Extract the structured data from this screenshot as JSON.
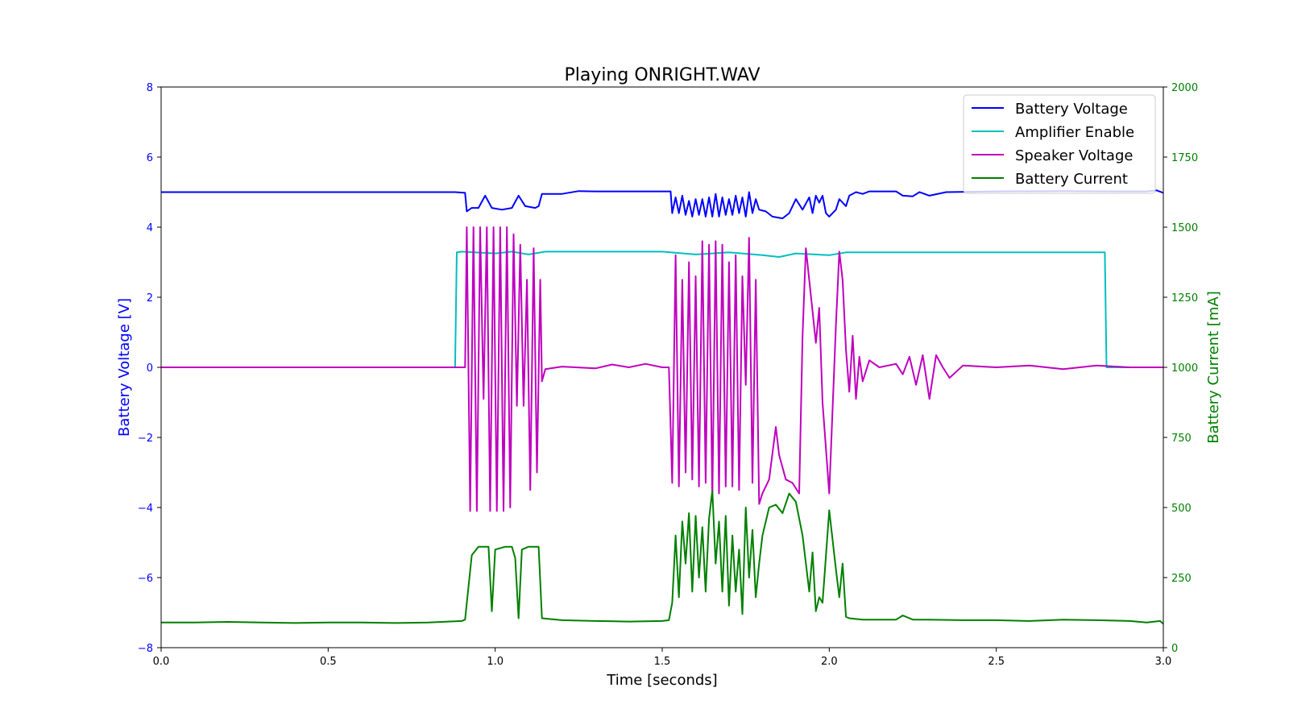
{
  "chart_data": {
    "type": "line",
    "title": "Playing ONRIGHT.WAV",
    "xlabel": "Time [seconds]",
    "ylabel_left": "Battery Voltage [V]",
    "ylabel_right": "Battery Current [mA]",
    "xlim": [
      0,
      3
    ],
    "ylim_left": [
      -8,
      8
    ],
    "ylim_right": [
      0,
      2000
    ],
    "x_ticks": [
      "0.0",
      "0.5",
      "1.0",
      "1.5",
      "2.0",
      "2.5",
      "3.0"
    ],
    "y_left_ticks": [
      "−8",
      "−6",
      "−4",
      "−2",
      "0",
      "2",
      "4",
      "6",
      "8"
    ],
    "y_right_ticks": [
      "0",
      "250",
      "500",
      "750",
      "1000",
      "1250",
      "1500",
      "1750",
      "2000"
    ],
    "grid": false,
    "legend_position": "top-right",
    "colors": {
      "axis_left": "#0000ff",
      "axis_right": "#008000"
    },
    "series": [
      {
        "name": "Battery Voltage",
        "color": "#0000ff",
        "axis": "left",
        "points": [
          [
            0.0,
            5.0
          ],
          [
            0.1,
            5.0
          ],
          [
            0.2,
            5.0
          ],
          [
            0.3,
            5.0
          ],
          [
            0.4,
            5.0
          ],
          [
            0.5,
            5.0
          ],
          [
            0.6,
            5.0
          ],
          [
            0.7,
            5.0
          ],
          [
            0.8,
            5.0
          ],
          [
            0.88,
            5.0
          ],
          [
            0.91,
            4.98
          ],
          [
            0.915,
            4.45
          ],
          [
            0.93,
            4.55
          ],
          [
            0.95,
            4.55
          ],
          [
            0.97,
            4.9
          ],
          [
            0.99,
            4.55
          ],
          [
            1.02,
            4.5
          ],
          [
            1.05,
            4.55
          ],
          [
            1.07,
            4.9
          ],
          [
            1.09,
            4.6
          ],
          [
            1.12,
            4.55
          ],
          [
            1.13,
            4.6
          ],
          [
            1.14,
            4.95
          ],
          [
            1.2,
            4.95
          ],
          [
            1.25,
            5.03
          ],
          [
            1.3,
            5.02
          ],
          [
            1.4,
            5.02
          ],
          [
            1.5,
            5.02
          ],
          [
            1.525,
            5.02
          ],
          [
            1.53,
            4.4
          ],
          [
            1.54,
            4.85
          ],
          [
            1.55,
            4.4
          ],
          [
            1.56,
            4.9
          ],
          [
            1.57,
            4.35
          ],
          [
            1.58,
            4.75
          ],
          [
            1.59,
            4.3
          ],
          [
            1.6,
            4.8
          ],
          [
            1.61,
            4.35
          ],
          [
            1.62,
            4.8
          ],
          [
            1.63,
            4.3
          ],
          [
            1.64,
            4.85
          ],
          [
            1.65,
            4.3
          ],
          [
            1.66,
            4.95
          ],
          [
            1.67,
            4.3
          ],
          [
            1.68,
            4.85
          ],
          [
            1.69,
            4.35
          ],
          [
            1.7,
            4.8
          ],
          [
            1.71,
            4.35
          ],
          [
            1.72,
            4.9
          ],
          [
            1.73,
            4.4
          ],
          [
            1.74,
            4.85
          ],
          [
            1.75,
            4.3
          ],
          [
            1.76,
            5.0
          ],
          [
            1.77,
            4.4
          ],
          [
            1.78,
            4.8
          ],
          [
            1.79,
            4.5
          ],
          [
            1.81,
            4.45
          ],
          [
            1.83,
            4.3
          ],
          [
            1.86,
            4.25
          ],
          [
            1.88,
            4.4
          ],
          [
            1.9,
            4.8
          ],
          [
            1.92,
            4.5
          ],
          [
            1.94,
            4.85
          ],
          [
            1.95,
            4.4
          ],
          [
            1.96,
            4.9
          ],
          [
            1.97,
            4.7
          ],
          [
            1.98,
            4.9
          ],
          [
            1.99,
            4.4
          ],
          [
            2.0,
            4.3
          ],
          [
            2.02,
            4.5
          ],
          [
            2.03,
            4.8
          ],
          [
            2.05,
            4.6
          ],
          [
            2.06,
            4.9
          ],
          [
            2.08,
            5.0
          ],
          [
            2.1,
            4.95
          ],
          [
            2.12,
            5.02
          ],
          [
            2.2,
            5.02
          ],
          [
            2.22,
            4.9
          ],
          [
            2.25,
            4.88
          ],
          [
            2.27,
            5.0
          ],
          [
            2.3,
            4.9
          ],
          [
            2.35,
            5.0
          ],
          [
            2.5,
            5.02
          ],
          [
            2.7,
            5.03
          ],
          [
            2.85,
            5.02
          ],
          [
            2.95,
            5.02
          ],
          [
            2.98,
            5.05
          ],
          [
            3.0,
            4.98
          ]
        ]
      },
      {
        "name": "Amplifier Enable",
        "color": "#00bfbf",
        "axis": "left",
        "points": [
          [
            0.0,
            0.0
          ],
          [
            0.88,
            0.0
          ],
          [
            0.885,
            3.28
          ],
          [
            0.9,
            3.3
          ],
          [
            1.0,
            3.25
          ],
          [
            1.05,
            3.3
          ],
          [
            1.1,
            3.22
          ],
          [
            1.15,
            3.3
          ],
          [
            1.5,
            3.3
          ],
          [
            1.6,
            3.22
          ],
          [
            1.7,
            3.28
          ],
          [
            1.8,
            3.2
          ],
          [
            1.85,
            3.15
          ],
          [
            1.9,
            3.25
          ],
          [
            2.0,
            3.2
          ],
          [
            2.05,
            3.28
          ],
          [
            2.5,
            3.28
          ],
          [
            2.825,
            3.28
          ],
          [
            2.83,
            0.0
          ],
          [
            3.0,
            0.0
          ]
        ]
      },
      {
        "name": "Speaker Voltage",
        "color": "#bf00bf",
        "axis": "left",
        "points": [
          [
            0.0,
            0.0
          ],
          [
            0.9,
            0.0
          ],
          [
            0.91,
            0.0
          ],
          [
            0.915,
            4.0
          ],
          [
            0.925,
            -4.1
          ],
          [
            0.935,
            4.0
          ],
          [
            0.945,
            -4.1
          ],
          [
            0.955,
            4.0
          ],
          [
            0.965,
            -0.9
          ],
          [
            0.975,
            4.0
          ],
          [
            0.985,
            -4.1
          ],
          [
            0.995,
            4.0
          ],
          [
            1.005,
            -4.1
          ],
          [
            1.015,
            4.0
          ],
          [
            1.025,
            -4.1
          ],
          [
            1.035,
            4.0
          ],
          [
            1.045,
            -4.0
          ],
          [
            1.055,
            3.8
          ],
          [
            1.065,
            -1.1
          ],
          [
            1.075,
            3.5
          ],
          [
            1.085,
            -1.1
          ],
          [
            1.095,
            2.5
          ],
          [
            1.105,
            -3.5
          ],
          [
            1.115,
            3.4
          ],
          [
            1.125,
            -3.0
          ],
          [
            1.135,
            2.5
          ],
          [
            1.14,
            -0.4
          ],
          [
            1.15,
            -0.05
          ],
          [
            1.2,
            0.02
          ],
          [
            1.3,
            -0.03
          ],
          [
            1.35,
            0.08
          ],
          [
            1.4,
            0.0
          ],
          [
            1.45,
            0.1
          ],
          [
            1.5,
            0.0
          ],
          [
            1.52,
            0.0
          ],
          [
            1.53,
            -3.3
          ],
          [
            1.54,
            3.2
          ],
          [
            1.55,
            -3.4
          ],
          [
            1.56,
            2.5
          ],
          [
            1.57,
            -3.0
          ],
          [
            1.58,
            3.0
          ],
          [
            1.59,
            -3.2
          ],
          [
            1.6,
            2.6
          ],
          [
            1.61,
            -3.4
          ],
          [
            1.62,
            3.6
          ],
          [
            1.63,
            -3.3
          ],
          [
            1.64,
            3.5
          ],
          [
            1.65,
            -3.8
          ],
          [
            1.66,
            3.6
          ],
          [
            1.67,
            -3.6
          ],
          [
            1.68,
            3.5
          ],
          [
            1.69,
            -3.4
          ],
          [
            1.7,
            3.0
          ],
          [
            1.71,
            -3.4
          ],
          [
            1.72,
            3.2
          ],
          [
            1.73,
            -3.5
          ],
          [
            1.74,
            2.6
          ],
          [
            1.75,
            -0.5
          ],
          [
            1.76,
            3.7
          ],
          [
            1.77,
            -3.3
          ],
          [
            1.78,
            2.5
          ],
          [
            1.79,
            -3.9
          ],
          [
            1.8,
            -3.6
          ],
          [
            1.82,
            -3.2
          ],
          [
            1.84,
            -1.7
          ],
          [
            1.85,
            -2.5
          ],
          [
            1.87,
            -3.2
          ],
          [
            1.89,
            -3.3
          ],
          [
            1.91,
            -3.6
          ],
          [
            1.92,
            0.9
          ],
          [
            1.93,
            3.4
          ],
          [
            1.95,
            1.6
          ],
          [
            1.96,
            0.7
          ],
          [
            1.97,
            1.7
          ],
          [
            1.98,
            -1.0
          ],
          [
            2.0,
            -3.6
          ],
          [
            2.02,
            1.2
          ],
          [
            2.03,
            3.3
          ],
          [
            2.04,
            2.5
          ],
          [
            2.05,
            0.5
          ],
          [
            2.06,
            -0.7
          ],
          [
            2.07,
            0.9
          ],
          [
            2.08,
            -0.9
          ],
          [
            2.09,
            0.3
          ],
          [
            2.1,
            -0.4
          ],
          [
            2.12,
            0.2
          ],
          [
            2.15,
            0.0
          ],
          [
            2.2,
            0.1
          ],
          [
            2.22,
            -0.2
          ],
          [
            2.24,
            0.3
          ],
          [
            2.26,
            -0.5
          ],
          [
            2.28,
            0.35
          ],
          [
            2.3,
            -0.9
          ],
          [
            2.32,
            0.35
          ],
          [
            2.34,
            0.0
          ],
          [
            2.36,
            -0.3
          ],
          [
            2.4,
            0.05
          ],
          [
            2.5,
            0.0
          ],
          [
            2.6,
            0.05
          ],
          [
            2.7,
            -0.05
          ],
          [
            2.8,
            0.05
          ],
          [
            2.9,
            0.0
          ],
          [
            3.0,
            0.0
          ]
        ]
      },
      {
        "name": "Battery Current",
        "color": "#008000",
        "axis": "right",
        "points": [
          [
            0.0,
            90
          ],
          [
            0.1,
            90
          ],
          [
            0.2,
            92
          ],
          [
            0.3,
            90
          ],
          [
            0.4,
            88
          ],
          [
            0.5,
            90
          ],
          [
            0.6,
            90
          ],
          [
            0.7,
            88
          ],
          [
            0.8,
            90
          ],
          [
            0.9,
            95
          ],
          [
            0.91,
            100
          ],
          [
            0.93,
            330
          ],
          [
            0.95,
            360
          ],
          [
            0.98,
            360
          ],
          [
            0.99,
            130
          ],
          [
            1.0,
            350
          ],
          [
            1.03,
            360
          ],
          [
            1.05,
            360
          ],
          [
            1.06,
            320
          ],
          [
            1.07,
            105
          ],
          [
            1.08,
            350
          ],
          [
            1.1,
            360
          ],
          [
            1.13,
            360
          ],
          [
            1.14,
            105
          ],
          [
            1.2,
            98
          ],
          [
            1.3,
            95
          ],
          [
            1.4,
            93
          ],
          [
            1.5,
            95
          ],
          [
            1.52,
            98
          ],
          [
            1.53,
            160
          ],
          [
            1.54,
            400
          ],
          [
            1.55,
            180
          ],
          [
            1.56,
            450
          ],
          [
            1.57,
            300
          ],
          [
            1.58,
            480
          ],
          [
            1.59,
            200
          ],
          [
            1.6,
            470
          ],
          [
            1.61,
            250
          ],
          [
            1.62,
            430
          ],
          [
            1.63,
            200
          ],
          [
            1.64,
            460
          ],
          [
            1.65,
            560
          ],
          [
            1.66,
            300
          ],
          [
            1.67,
            450
          ],
          [
            1.68,
            200
          ],
          [
            1.69,
            470
          ],
          [
            1.7,
            150
          ],
          [
            1.71,
            400
          ],
          [
            1.72,
            200
          ],
          [
            1.73,
            350
          ],
          [
            1.74,
            120
          ],
          [
            1.75,
            500
          ],
          [
            1.76,
            250
          ],
          [
            1.77,
            420
          ],
          [
            1.78,
            180
          ],
          [
            1.79,
            300
          ],
          [
            1.8,
            400
          ],
          [
            1.82,
            500
          ],
          [
            1.84,
            510
          ],
          [
            1.86,
            480
          ],
          [
            1.88,
            550
          ],
          [
            1.9,
            520
          ],
          [
            1.92,
            400
          ],
          [
            1.94,
            200
          ],
          [
            1.95,
            340
          ],
          [
            1.96,
            130
          ],
          [
            1.97,
            180
          ],
          [
            1.98,
            160
          ],
          [
            2.0,
            490
          ],
          [
            2.02,
            280
          ],
          [
            2.03,
            180
          ],
          [
            2.04,
            300
          ],
          [
            2.05,
            110
          ],
          [
            2.06,
            105
          ],
          [
            2.1,
            100
          ],
          [
            2.2,
            100
          ],
          [
            2.22,
            115
          ],
          [
            2.25,
            100
          ],
          [
            2.3,
            100
          ],
          [
            2.4,
            98
          ],
          [
            2.5,
            98
          ],
          [
            2.6,
            95
          ],
          [
            2.7,
            100
          ],
          [
            2.8,
            98
          ],
          [
            2.9,
            95
          ],
          [
            2.95,
            90
          ],
          [
            2.99,
            95
          ],
          [
            3.0,
            85
          ]
        ]
      }
    ]
  }
}
